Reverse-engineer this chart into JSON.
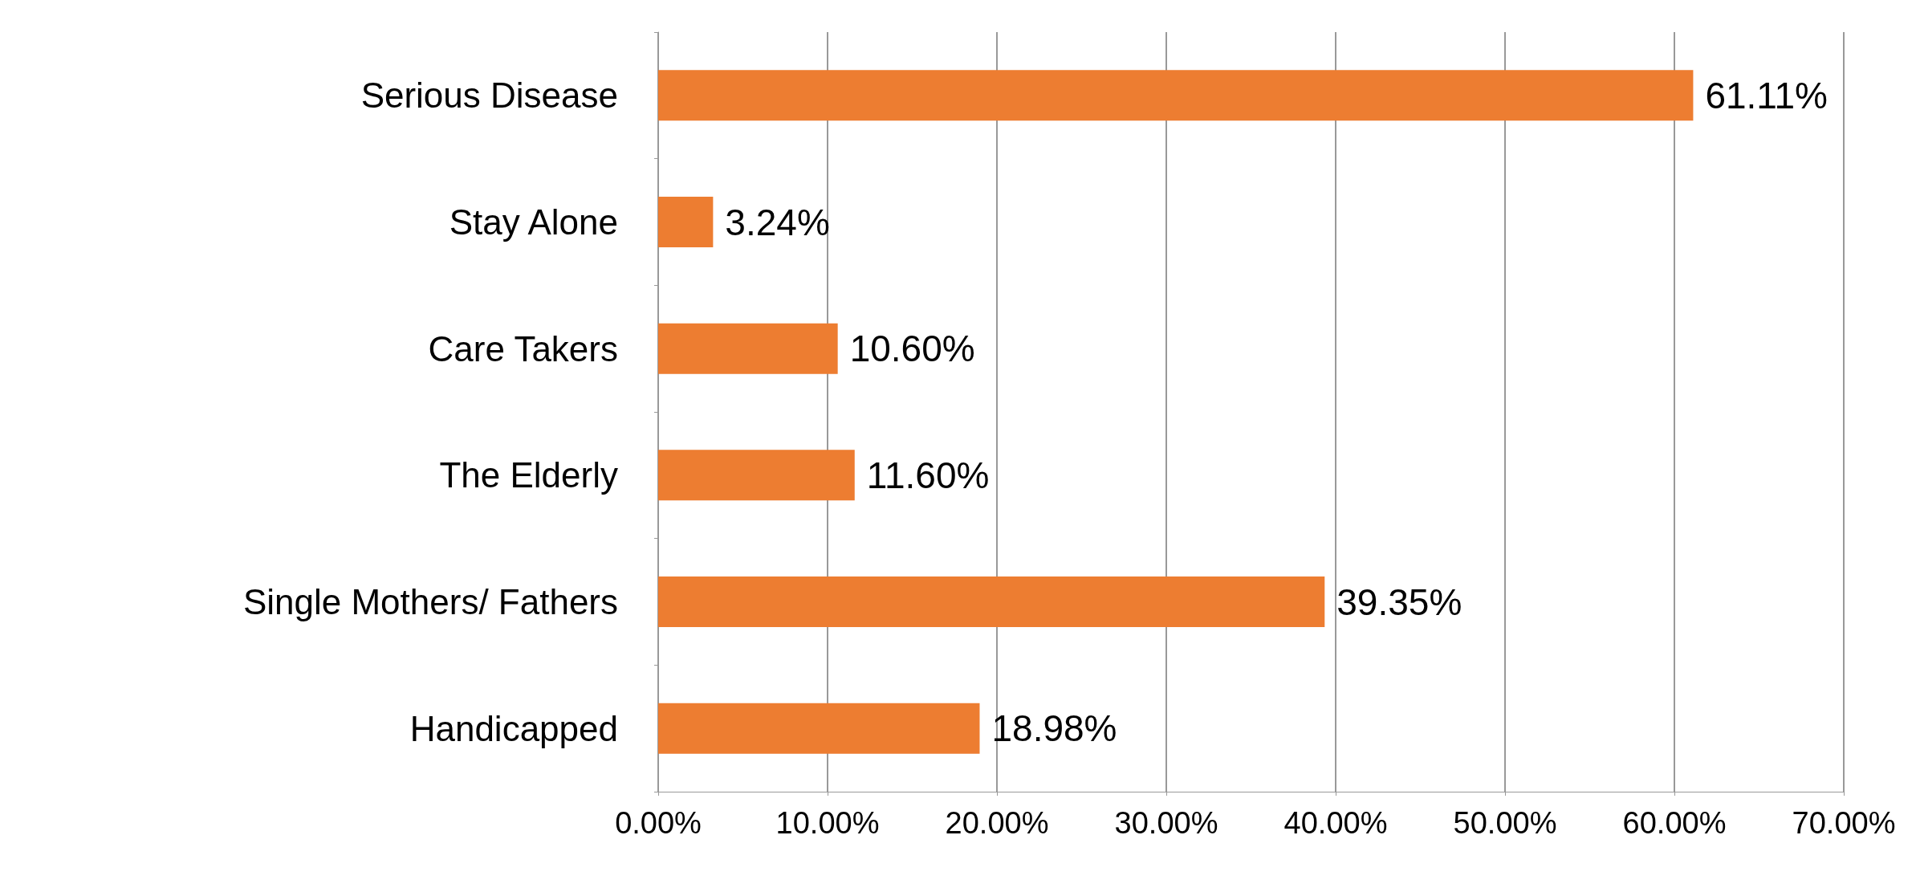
{
  "chart_data": {
    "type": "bar",
    "orientation": "horizontal",
    "categories": [
      "Serious Disease",
      "Stay Alone",
      "Care Takers",
      "The Elderly",
      "Single Mothers/ Fathers",
      "Handicapped"
    ],
    "values": [
      61.11,
      3.24,
      10.6,
      11.6,
      39.35,
      18.98
    ],
    "value_labels": [
      "61.11%",
      "3.24%",
      "10.60%",
      "11.60%",
      "39.35%",
      "18.98%"
    ],
    "color": "#ed7d31",
    "xlim": [
      0,
      70
    ],
    "xticks": [
      {
        "value": 0,
        "label": "0.00%"
      },
      {
        "value": 10,
        "label": "10.00%"
      },
      {
        "value": 20,
        "label": "20.00%"
      },
      {
        "value": 30,
        "label": "30.00%"
      },
      {
        "value": 40,
        "label": "40.00%"
      },
      {
        "value": 50,
        "label": "50.00%"
      },
      {
        "value": 60,
        "label": "60.00%"
      },
      {
        "value": 70,
        "label": "70.00%"
      }
    ],
    "grid": "x"
  }
}
